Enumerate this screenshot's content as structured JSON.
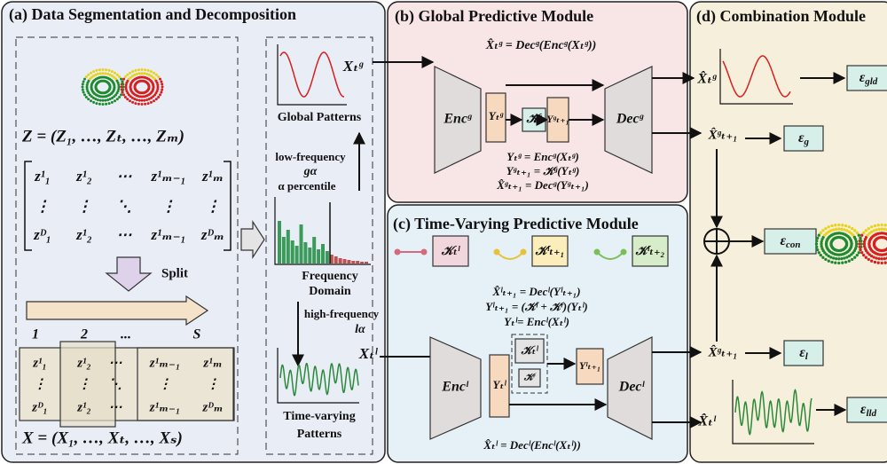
{
  "panel_a": {
    "title": "(a) Data Segmentation and Decomposition",
    "z_equation": "Z = (Z₁, …, Zₜ, …, Zₘ)",
    "matrix": [
      [
        "z¹₁",
        "z¹₂",
        "⋯",
        "z¹ₘ₋₁",
        "z¹ₘ"
      ],
      [
        "⋮",
        "⋮",
        "⋱",
        "⋮",
        "⋮"
      ],
      [
        "zᴰ₁",
        "z¹₂",
        "⋯",
        "z¹ₘ₋₁",
        "zᴰₘ"
      ]
    ],
    "split": "Split",
    "segment_labels": [
      "1",
      "2",
      "...",
      "S"
    ],
    "segment_matrix": [
      [
        "z¹₁",
        "z¹₂",
        "⋯",
        "z¹ₘ₋₁",
        "z¹ₘ"
      ],
      [
        "⋮",
        "⋮",
        "⋱",
        "⋮",
        "⋮"
      ],
      [
        "zᴰ₁",
        "z¹₂",
        "⋯",
        "z¹ₘ₋₁",
        "zᴰₘ"
      ]
    ],
    "x_equation": "X = (X₁, …, Xₜ, …, Xₛ)",
    "global_label": "Xₜᵍ",
    "global_patterns": "Global Patterns",
    "low_frequency": "low-frequency",
    "g_alpha": "gα",
    "alpha_percentile": "α percentile",
    "frequency_domain": [
      "Frequency",
      "Domain"
    ],
    "high_frequency": "high-frequency",
    "l_alpha": "lα",
    "local_label": "Xₜˡ",
    "time_varying_patterns": [
      "Time-varying",
      "Patterns"
    ]
  },
  "panel_b": {
    "title": "(b) Global Predictive Module",
    "top_equation": "X̂ₜᵍ = Decᵍ(Encᵍ(Xₜᵍ))",
    "encoder": "Encᵍ",
    "latent": "Yₜᵍ",
    "operator": "𝒦ᵍ",
    "next_latent": "Yᵍₜ₊₁",
    "decoder": "Decᵍ",
    "equations": [
      "Yₜᵍ = Encᵍ(Xₜᵍ)",
      "Yᵍₜ₊₁ = 𝒦ᵍ(Yₜᵍ)",
      "X̂ᵍₜ₊₁ = Decᵍ(Yᵍₜ₊₁)"
    ]
  },
  "panel_c": {
    "title": "(c) Time-Varying Predictive Module",
    "operators": [
      "𝒦ₜˡ",
      "𝒦ˡₜ₊₁",
      "𝒦ˡₜ₊₂"
    ],
    "equations": [
      "X̂ˡₜ₊₁ = Decˡ(Yˡₜ₊₁)",
      "Yˡₜ₊₁ = (𝒦ˡ + 𝒦ʳ)(Yₜˡ)",
      "Yₜˡ= Encˡ(Xₜˡ)"
    ],
    "encoder": "Encˡ",
    "latent": "Yₜˡ",
    "local_operator": "𝒦ₜˡ",
    "residual_operator": "𝒦ʳ",
    "next_latent": "Yˡₜ₊₁",
    "decoder": "Decˡ",
    "bottom_equation": "X̂ₜˡ = Decˡ(Encˡ(Xₜˡ))"
  },
  "panel_d": {
    "title": "(d) Combination Module",
    "global_recon": "X̂ₜᵍ",
    "global_pred": "X̂ᵍₜ₊₁",
    "local_pred": "X̂ᵍₜ₊₁",
    "local_recon": "X̂ₜˡ",
    "losses": {
      "gld": {
        "symbol": "ε",
        "sub": "gld"
      },
      "g": {
        "symbol": "ε",
        "sub": "g"
      },
      "con": {
        "symbol": "ε",
        "sub": "con"
      },
      "l": {
        "symbol": "ε",
        "sub": "l"
      },
      "lld": {
        "symbol": "ε",
        "sub": "lld"
      }
    }
  }
}
